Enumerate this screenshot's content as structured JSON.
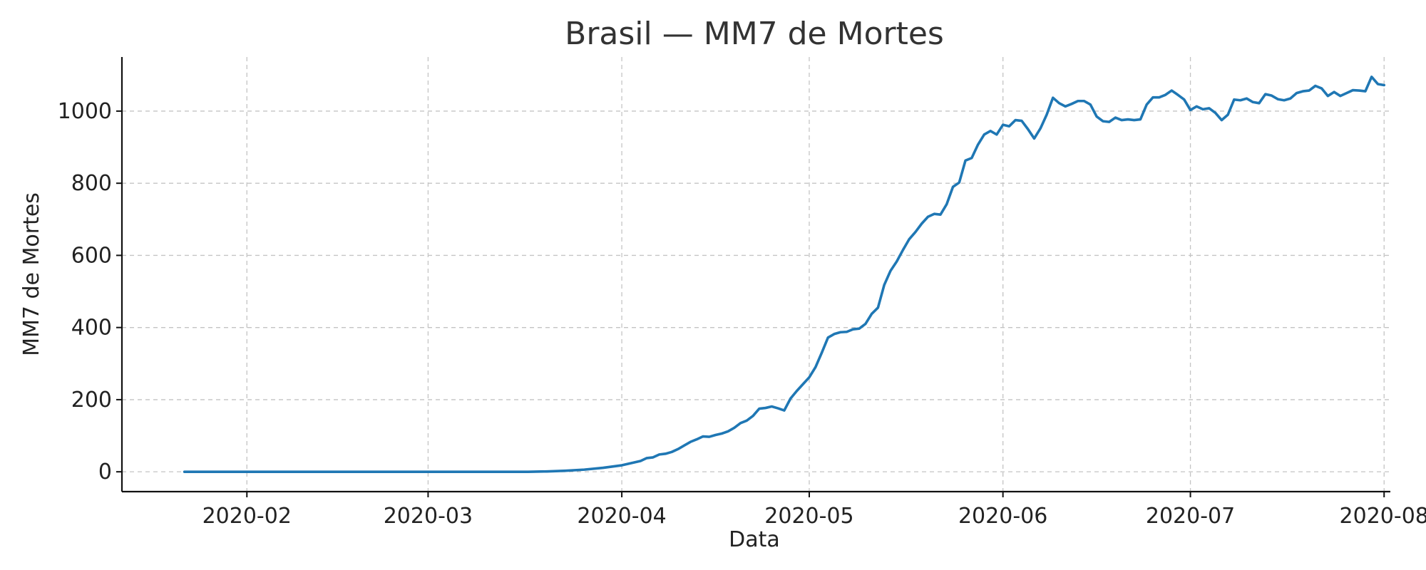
{
  "chart_data": {
    "type": "line",
    "title": "Brasil — MM7 de Mortes",
    "xlabel": "Data",
    "ylabel": "MM7 de Mortes",
    "x_axis_type": "date",
    "xlim": [
      "2020-01-12",
      "2020-08-02"
    ],
    "ylim": [
      -55,
      1150
    ],
    "x_ticks": [
      {
        "date": "2020-02-01",
        "label": "2020-02"
      },
      {
        "date": "2020-03-01",
        "label": "2020-03"
      },
      {
        "date": "2020-04-01",
        "label": "2020-04"
      },
      {
        "date": "2020-05-01",
        "label": "2020-05"
      },
      {
        "date": "2020-06-01",
        "label": "2020-06"
      },
      {
        "date": "2020-07-01",
        "label": "2020-07"
      },
      {
        "date": "2020-08-01",
        "label": "2020-08"
      }
    ],
    "y_ticks": [
      0,
      200,
      400,
      600,
      800,
      1000
    ],
    "grid": true,
    "legend": "none",
    "colors": {
      "series": "#1f77b4",
      "grid": "#c4c4c4",
      "axis": "#111111"
    },
    "series": [
      {
        "points": [
          [
            "2020-01-22",
            0
          ],
          [
            "2020-02-01",
            0
          ],
          [
            "2020-02-15",
            0
          ],
          [
            "2020-03-01",
            0
          ],
          [
            "2020-03-17",
            0
          ],
          [
            "2020-03-20",
            1
          ],
          [
            "2020-03-23",
            3
          ],
          [
            "2020-03-26",
            6
          ],
          [
            "2020-03-29",
            11
          ],
          [
            "2020-04-01",
            18
          ],
          [
            "2020-04-02",
            22
          ],
          [
            "2020-04-03",
            26
          ],
          [
            "2020-04-04",
            30
          ],
          [
            "2020-04-05",
            38
          ],
          [
            "2020-04-06",
            40
          ],
          [
            "2020-04-07",
            48
          ],
          [
            "2020-04-08",
            50
          ],
          [
            "2020-04-09",
            55
          ],
          [
            "2020-04-10",
            63
          ],
          [
            "2020-04-11",
            73
          ],
          [
            "2020-04-12",
            83
          ],
          [
            "2020-04-13",
            90
          ],
          [
            "2020-04-14",
            98
          ],
          [
            "2020-04-15",
            97
          ],
          [
            "2020-04-16",
            102
          ],
          [
            "2020-04-17",
            106
          ],
          [
            "2020-04-18",
            112
          ],
          [
            "2020-04-19",
            122
          ],
          [
            "2020-04-20",
            135
          ],
          [
            "2020-04-21",
            142
          ],
          [
            "2020-04-22",
            155
          ],
          [
            "2020-04-23",
            175
          ],
          [
            "2020-04-24",
            177
          ],
          [
            "2020-04-25",
            181
          ],
          [
            "2020-04-26",
            176
          ],
          [
            "2020-04-27",
            170
          ],
          [
            "2020-04-28",
            203
          ],
          [
            "2020-04-29",
            224
          ],
          [
            "2020-04-30",
            243
          ],
          [
            "2020-05-01",
            262
          ],
          [
            "2020-05-02",
            290
          ],
          [
            "2020-05-03",
            330
          ],
          [
            "2020-05-04",
            372
          ],
          [
            "2020-05-05",
            382
          ],
          [
            "2020-05-06",
            387
          ],
          [
            "2020-05-07",
            388
          ],
          [
            "2020-05-08",
            395
          ],
          [
            "2020-05-09",
            397
          ],
          [
            "2020-05-10",
            410
          ],
          [
            "2020-05-11",
            438
          ],
          [
            "2020-05-12",
            455
          ],
          [
            "2020-05-13",
            518
          ],
          [
            "2020-05-14",
            557
          ],
          [
            "2020-05-15",
            583
          ],
          [
            "2020-05-16",
            615
          ],
          [
            "2020-05-17",
            645
          ],
          [
            "2020-05-18",
            665
          ],
          [
            "2020-05-19",
            688
          ],
          [
            "2020-05-20",
            707
          ],
          [
            "2020-05-21",
            715
          ],
          [
            "2020-05-22",
            713
          ],
          [
            "2020-05-23",
            742
          ],
          [
            "2020-05-24",
            790
          ],
          [
            "2020-05-25",
            802
          ],
          [
            "2020-05-26",
            863
          ],
          [
            "2020-05-27",
            870
          ],
          [
            "2020-05-28",
            907
          ],
          [
            "2020-05-29",
            935
          ],
          [
            "2020-05-30",
            945
          ],
          [
            "2020-05-31",
            935
          ],
          [
            "2020-06-01",
            962
          ],
          [
            "2020-06-02",
            958
          ],
          [
            "2020-06-03",
            975
          ],
          [
            "2020-06-04",
            973
          ],
          [
            "2020-06-05",
            950
          ],
          [
            "2020-06-06",
            924
          ],
          [
            "2020-06-07",
            952
          ],
          [
            "2020-06-08",
            990
          ],
          [
            "2020-06-09",
            1037
          ],
          [
            "2020-06-10",
            1022
          ],
          [
            "2020-06-11",
            1013
          ],
          [
            "2020-06-12",
            1020
          ],
          [
            "2020-06-13",
            1028
          ],
          [
            "2020-06-14",
            1028
          ],
          [
            "2020-06-15",
            1018
          ],
          [
            "2020-06-16",
            985
          ],
          [
            "2020-06-17",
            972
          ],
          [
            "2020-06-18",
            970
          ],
          [
            "2020-06-19",
            982
          ],
          [
            "2020-06-20",
            975
          ],
          [
            "2020-06-21",
            977
          ],
          [
            "2020-06-22",
            975
          ],
          [
            "2020-06-23",
            977
          ],
          [
            "2020-06-24",
            1018
          ],
          [
            "2020-06-25",
            1038
          ],
          [
            "2020-06-26",
            1038
          ],
          [
            "2020-06-27",
            1045
          ],
          [
            "2020-06-28",
            1057
          ],
          [
            "2020-06-29",
            1045
          ],
          [
            "2020-06-30",
            1032
          ],
          [
            "2020-07-01",
            1003
          ],
          [
            "2020-07-02",
            1013
          ],
          [
            "2020-07-03",
            1005
          ],
          [
            "2020-07-04",
            1008
          ],
          [
            "2020-07-05",
            995
          ],
          [
            "2020-07-06",
            975
          ],
          [
            "2020-07-07",
            990
          ],
          [
            "2020-07-08",
            1032
          ],
          [
            "2020-07-09",
            1030
          ],
          [
            "2020-07-10",
            1035
          ],
          [
            "2020-07-11",
            1025
          ],
          [
            "2020-07-12",
            1022
          ],
          [
            "2020-07-13",
            1047
          ],
          [
            "2020-07-14",
            1043
          ],
          [
            "2020-07-15",
            1033
          ],
          [
            "2020-07-16",
            1030
          ],
          [
            "2020-07-17",
            1035
          ],
          [
            "2020-07-18",
            1050
          ],
          [
            "2020-07-19",
            1055
          ],
          [
            "2020-07-20",
            1057
          ],
          [
            "2020-07-21",
            1070
          ],
          [
            "2020-07-22",
            1063
          ],
          [
            "2020-07-23",
            1042
          ],
          [
            "2020-07-24",
            1053
          ],
          [
            "2020-07-25",
            1042
          ],
          [
            "2020-07-26",
            1050
          ],
          [
            "2020-07-27",
            1058
          ],
          [
            "2020-07-28",
            1057
          ],
          [
            "2020-07-29",
            1055
          ],
          [
            "2020-07-30",
            1095
          ],
          [
            "2020-07-31",
            1075
          ],
          [
            "2020-08-01",
            1072
          ]
        ]
      }
    ]
  }
}
